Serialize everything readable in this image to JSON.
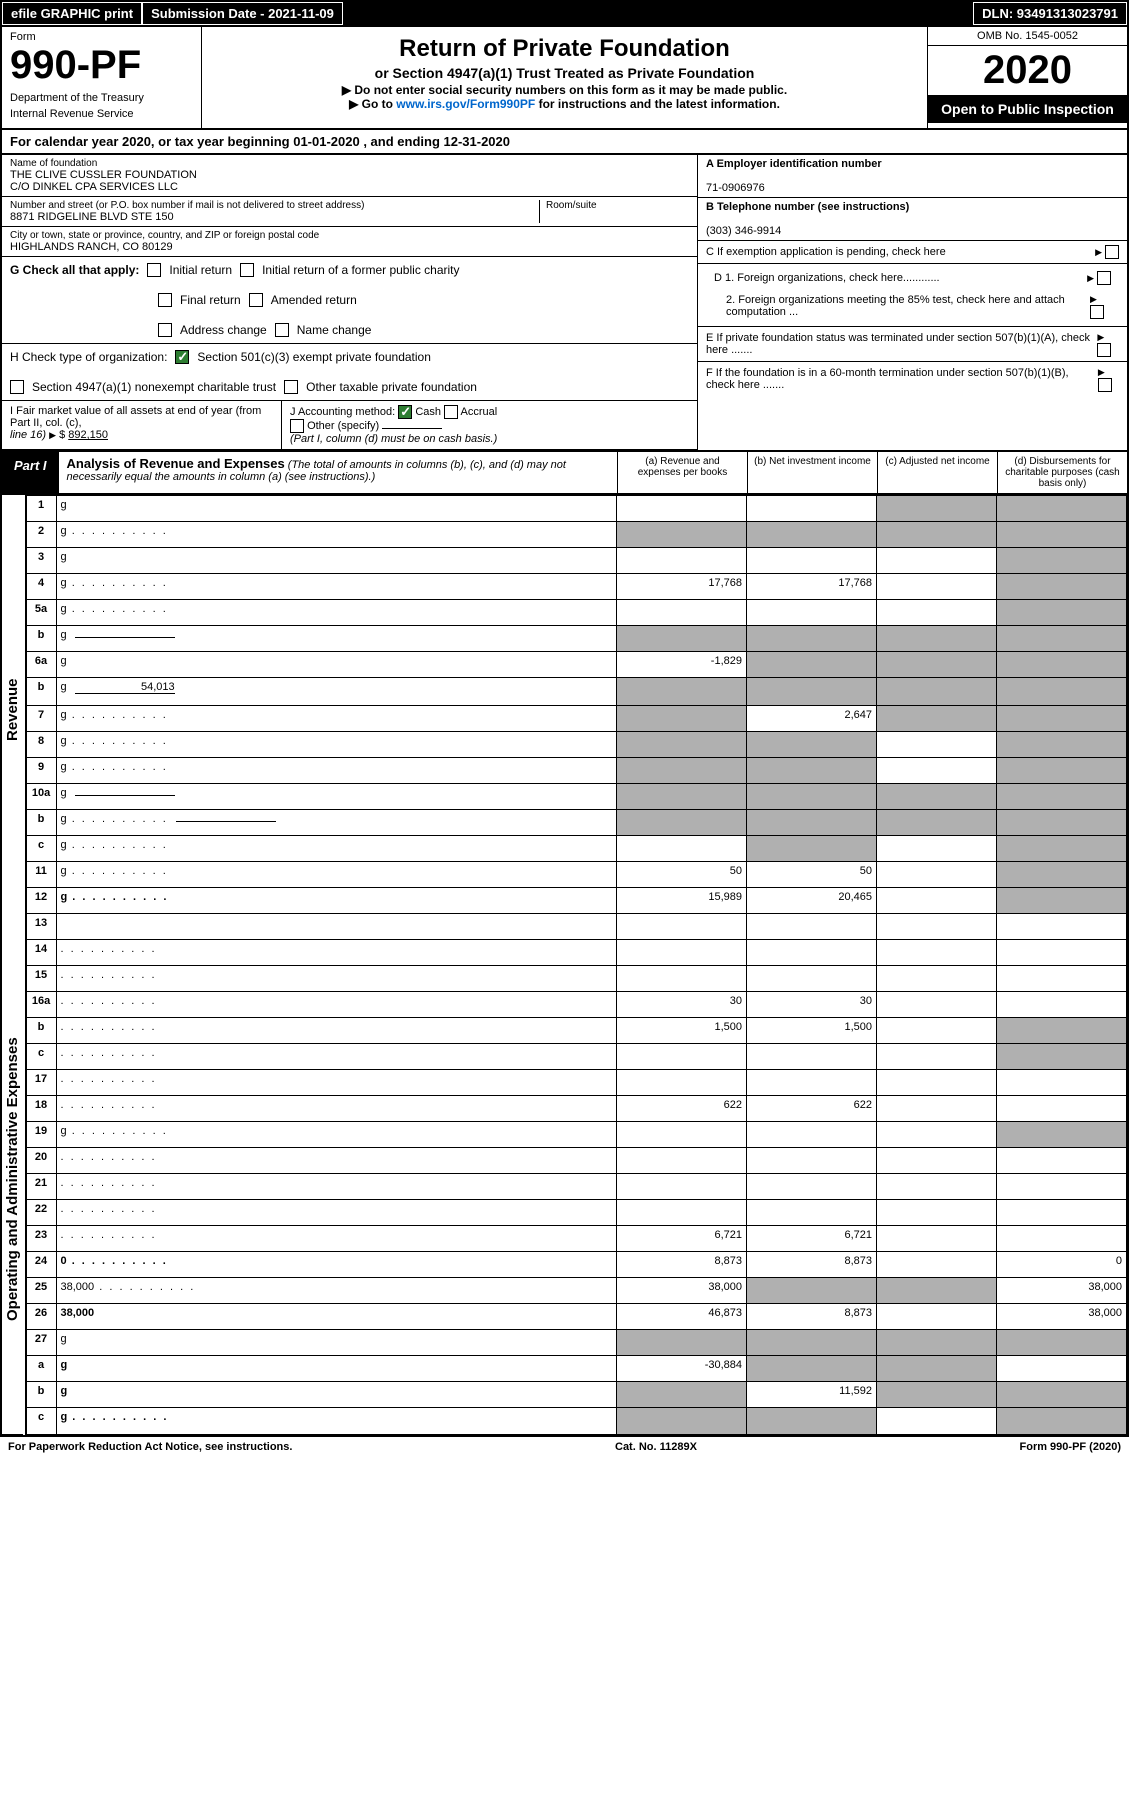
{
  "top": {
    "efile": "efile GRAPHIC print",
    "sub_date_lbl": "Submission Date - 2021-11-09",
    "dln": "DLN: 93491313023791"
  },
  "header": {
    "form_word": "Form",
    "form_num": "990-PF",
    "dept": "Department of the Treasury",
    "irs": "Internal Revenue Service",
    "title": "Return of Private Foundation",
    "subtitle": "or Section 4947(a)(1) Trust Treated as Private Foundation",
    "warn": "▶ Do not enter social security numbers on this form as it may be made public.",
    "goto_pre": "▶ Go to ",
    "goto_link": "www.irs.gov/Form990PF",
    "goto_post": " for instructions and the latest information.",
    "omb": "OMB No. 1545-0052",
    "year": "2020",
    "open": "Open to Public Inspection"
  },
  "cal_year": "For calendar year 2020, or tax year beginning 01-01-2020             , and ending 12-31-2020",
  "entity": {
    "name_lbl": "Name of foundation",
    "name1": "THE CLIVE CUSSLER FOUNDATION",
    "name2": "C/O DINKEL CPA SERVICES LLC",
    "addr_lbl": "Number and street (or P.O. box number if mail is not delivered to street address)",
    "addr": "8871 RIDGELINE BLVD STE 150",
    "room_lbl": "Room/suite",
    "city_lbl": "City or town, state or province, country, and ZIP or foreign postal code",
    "city": "HIGHLANDS RANCH, CO  80129",
    "a_lbl": "A Employer identification number",
    "a_val": "71-0906976",
    "b_lbl": "B Telephone number (see instructions)",
    "b_val": "(303) 346-9914",
    "c_lbl": "C If exemption application is pending, check here",
    "d1": "D 1. Foreign organizations, check here............",
    "d2": "2. Foreign organizations meeting the 85% test, check here and attach computation ...",
    "e_lbl": "E  If private foundation status was terminated under section 507(b)(1)(A), check here .......",
    "f_lbl": "F  If the foundation is in a 60-month termination under section 507(b)(1)(B), check here .......",
    "g_lbl": "G Check all that apply:",
    "g_initial": "Initial return",
    "g_initial_former": "Initial return of a former public charity",
    "g_final": "Final return",
    "g_amended": "Amended return",
    "g_addr": "Address change",
    "g_name": "Name change",
    "h_lbl": "H Check type of organization:",
    "h_501c3": "Section 501(c)(3) exempt private foundation",
    "h_4947": "Section 4947(a)(1) nonexempt charitable trust",
    "h_other_tax": "Other taxable private foundation",
    "i_lbl": "I Fair market value of all assets at end of year (from Part II, col. (c),",
    "i_line": "line 16)",
    "i_val": "892,150",
    "j_lbl": "J Accounting method:",
    "j_cash": "Cash",
    "j_accrual": "Accrual",
    "j_other": "Other (specify)",
    "j_note": "(Part I, column (d) must be on cash basis.)"
  },
  "part1": {
    "lbl": "Part I",
    "title": "Analysis of Revenue and Expenses",
    "note": " (The total of amounts in columns (b), (c), and (d) may not necessarily equal the amounts in column (a) (see instructions).)",
    "col_a": "(a)   Revenue and expenses per books",
    "col_b": "(b)   Net investment income",
    "col_c": "(c)   Adjusted net income",
    "col_d": "(d)  Disbursements for charitable purposes (cash basis only)"
  },
  "side": {
    "revenue": "Revenue",
    "opex": "Operating and Administrative Expenses"
  },
  "rows": [
    {
      "n": "1",
      "d": "g",
      "a": "",
      "b": "",
      "c": "g"
    },
    {
      "n": "2",
      "d": "g",
      "dots": true,
      "a": "g",
      "b": "g",
      "c": "g"
    },
    {
      "n": "3",
      "d": "g",
      "a": "",
      "b": "",
      "c": ""
    },
    {
      "n": "4",
      "d": "g",
      "dots": true,
      "a": "17,768",
      "b": "17,768",
      "c": ""
    },
    {
      "n": "5a",
      "d": "g",
      "dots": true,
      "a": "",
      "b": "",
      "c": ""
    },
    {
      "n": "b",
      "d": "g",
      "inline": true,
      "a": "g",
      "b": "g",
      "c": "g"
    },
    {
      "n": "6a",
      "d": "g",
      "a": "-1,829",
      "b": "g",
      "c": "g"
    },
    {
      "n": "b",
      "d": "g",
      "inline": true,
      "iv": "54,013",
      "a": "g",
      "b": "g",
      "c": "g"
    },
    {
      "n": "7",
      "d": "g",
      "dots": true,
      "a": "g",
      "b": "2,647",
      "c": "g"
    },
    {
      "n": "8",
      "d": "g",
      "dots": true,
      "a": "g",
      "b": "g",
      "c": ""
    },
    {
      "n": "9",
      "d": "g",
      "dots": true,
      "a": "g",
      "b": "g",
      "c": ""
    },
    {
      "n": "10a",
      "d": "g",
      "inline": true,
      "a": "g",
      "b": "g",
      "c": "g"
    },
    {
      "n": "b",
      "d": "g",
      "dots": true,
      "inline": true,
      "a": "g",
      "b": "g",
      "c": "g"
    },
    {
      "n": "c",
      "d": "g",
      "dots": true,
      "a": "",
      "b": "g",
      "c": ""
    },
    {
      "n": "11",
      "d": "g",
      "dots": true,
      "a": "50",
      "b": "50",
      "c": ""
    },
    {
      "n": "12",
      "d": "g",
      "dots": true,
      "bold": true,
      "a": "15,989",
      "b": "20,465",
      "c": ""
    },
    {
      "n": "13",
      "d": "",
      "a": "",
      "b": "",
      "c": ""
    },
    {
      "n": "14",
      "d": "",
      "dots": true,
      "a": "",
      "b": "",
      "c": ""
    },
    {
      "n": "15",
      "d": "",
      "dots": true,
      "a": "",
      "b": "",
      "c": ""
    },
    {
      "n": "16a",
      "d": "",
      "dots": true,
      "a": "30",
      "b": "30",
      "c": ""
    },
    {
      "n": "b",
      "d": "",
      "dots": true,
      "a": "1,500",
      "b": "1,500",
      "c": ""
    },
    {
      "n": "c",
      "d": "",
      "dots": true,
      "a": "",
      "b": "",
      "c": ""
    },
    {
      "n": "17",
      "d": "",
      "dots": true,
      "a": "",
      "b": "",
      "c": ""
    },
    {
      "n": "18",
      "d": "",
      "dots": true,
      "a": "622",
      "b": "622",
      "c": ""
    },
    {
      "n": "19",
      "d": "g",
      "dots": true,
      "a": "",
      "b": "",
      "c": ""
    },
    {
      "n": "20",
      "d": "",
      "dots": true,
      "a": "",
      "b": "",
      "c": ""
    },
    {
      "n": "21",
      "d": "",
      "dots": true,
      "a": "",
      "b": "",
      "c": ""
    },
    {
      "n": "22",
      "d": "",
      "dots": true,
      "a": "",
      "b": "",
      "c": ""
    },
    {
      "n": "23",
      "d": "",
      "dots": true,
      "a": "6,721",
      "b": "6,721",
      "c": ""
    },
    {
      "n": "24",
      "d": "0",
      "dots": true,
      "bold": true,
      "a": "8,873",
      "b": "8,873",
      "c": ""
    },
    {
      "n": "25",
      "d": "38,000",
      "dots": true,
      "a": "38,000",
      "b": "g",
      "c": "g"
    },
    {
      "n": "26",
      "d": "38,000",
      "bold": true,
      "a": "46,873",
      "b": "8,873",
      "c": ""
    },
    {
      "n": "27",
      "d": "g",
      "a": "g",
      "b": "g",
      "c": "g"
    },
    {
      "n": "a",
      "d": "g",
      "bold": true,
      "a": "-30,884",
      "b": "g",
      "c": "g"
    },
    {
      "n": "b",
      "d": "g",
      "bold": true,
      "a": "g",
      "b": "11,592",
      "c": "g"
    },
    {
      "n": "c",
      "d": "g",
      "bold": true,
      "dots": true,
      "a": "g",
      "b": "g",
      "c": ""
    }
  ],
  "footer": {
    "pra": "For Paperwork Reduction Act Notice, see instructions.",
    "cat": "Cat. No. 11289X",
    "form": "Form 990-PF (2020)"
  }
}
